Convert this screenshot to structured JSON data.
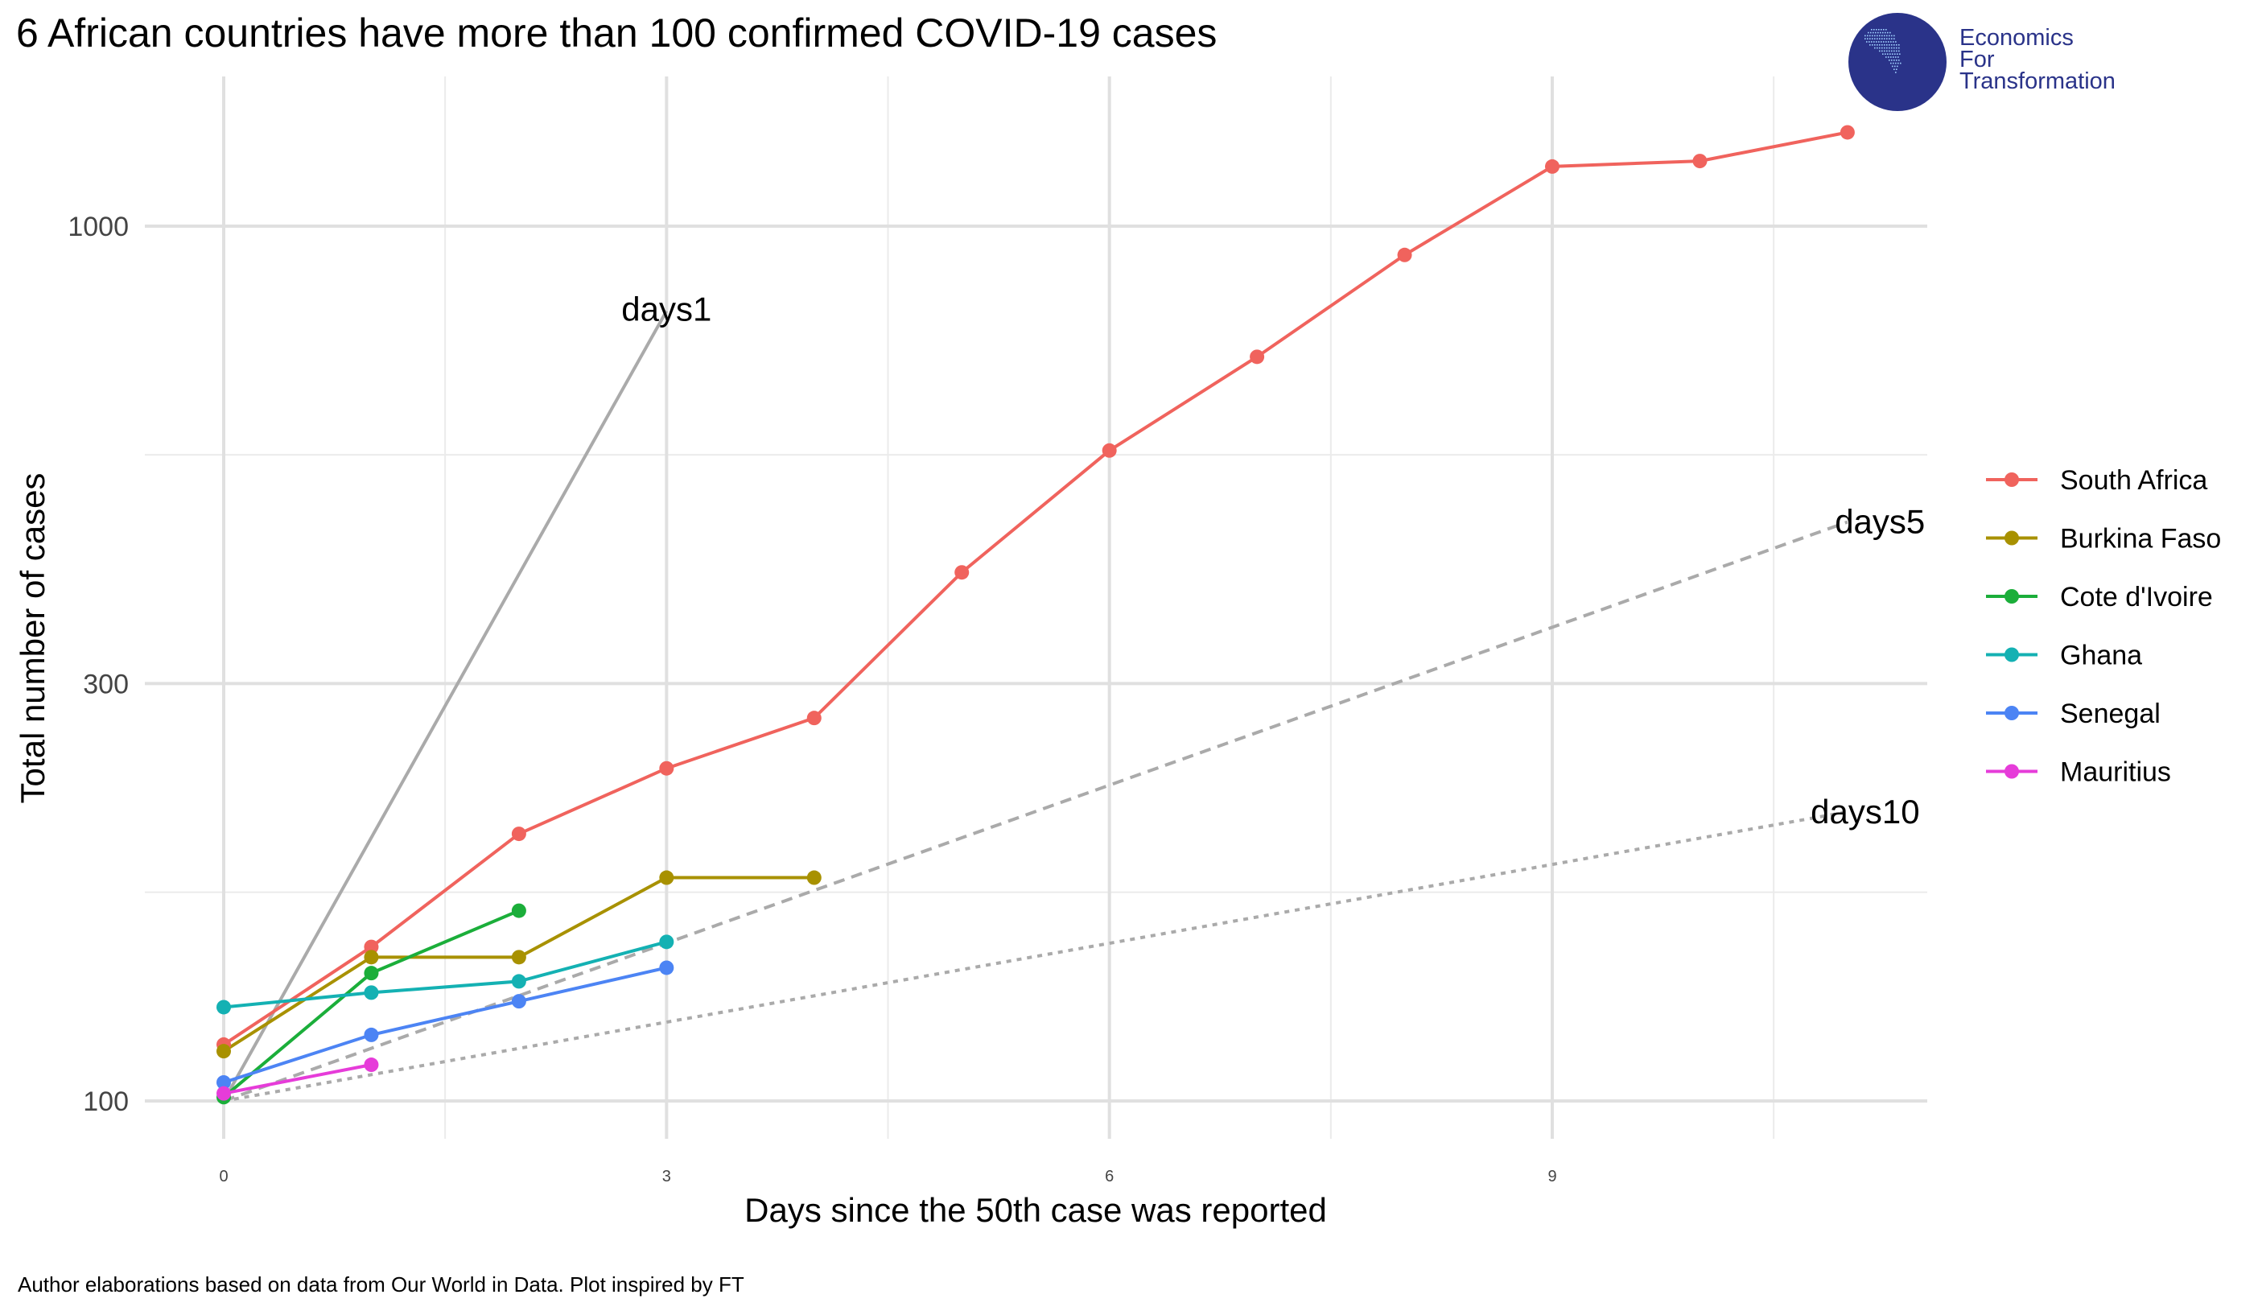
{
  "title": "6 African countries have more than 100 confirmed COVID-19 cases",
  "caption": "Author elaborations based on data from Our World in Data. Plot inspired by FT",
  "logo": {
    "line1": "Economics",
    "line2": "For",
    "line3": "Transformation",
    "color": "#2a3389"
  },
  "chart_data": {
    "type": "line",
    "title": "6 African countries have more than 100 confirmed COVID-19 cases",
    "xlabel": "Days since the 50th case was reported",
    "ylabel": "Total number of cases",
    "y_scale": "log",
    "xlim": [
      -0.55,
      11.55
    ],
    "ylim": [
      90,
      1450
    ],
    "x_ticks": [
      0,
      3,
      6,
      9
    ],
    "y_ticks": [
      100,
      300,
      1000
    ],
    "grid": true,
    "legend_position": "right",
    "series": [
      {
        "name": "South Africa",
        "color": "#F0635D",
        "x": [
          0,
          1,
          2,
          3,
          4,
          5,
          6,
          7,
          8,
          9,
          10,
          11
        ],
        "values": [
          116,
          150,
          202,
          240,
          274,
          402,
          554,
          709,
          927,
          1170,
          1187,
          1280
        ]
      },
      {
        "name": "Burkina Faso",
        "color": "#A89100",
        "x": [
          0,
          1,
          2,
          3,
          4
        ],
        "values": [
          114,
          146,
          146,
          180,
          180
        ]
      },
      {
        "name": "Cote d'Ivoire",
        "color": "#1BAE3A",
        "x": [
          0,
          1,
          2
        ],
        "values": [
          101,
          140,
          165
        ]
      },
      {
        "name": "Ghana",
        "color": "#14B1B3",
        "x": [
          0,
          1,
          2,
          3
        ],
        "values": [
          128,
          133,
          137,
          152
        ]
      },
      {
        "name": "Senegal",
        "color": "#4C84F4",
        "x": [
          0,
          1,
          2,
          3
        ],
        "values": [
          105,
          119,
          130,
          142
        ]
      },
      {
        "name": "Mauritius",
        "color": "#E63CD9",
        "x": [
          0,
          1
        ],
        "values": [
          102,
          110
        ]
      }
    ],
    "reference_lines": [
      {
        "label": "days1",
        "style": "solid",
        "color": "#AAAAAA",
        "x": [
          0,
          3
        ],
        "values": [
          100,
          800
        ]
      },
      {
        "label": "days5",
        "style": "dashed",
        "color": "#AAAAAA",
        "x": [
          0,
          11
        ],
        "values": [
          100,
          459
        ]
      },
      {
        "label": "days10",
        "style": "dotted",
        "color": "#AAAAAA",
        "x": [
          0,
          11
        ],
        "values": [
          100,
          214
        ]
      }
    ]
  }
}
